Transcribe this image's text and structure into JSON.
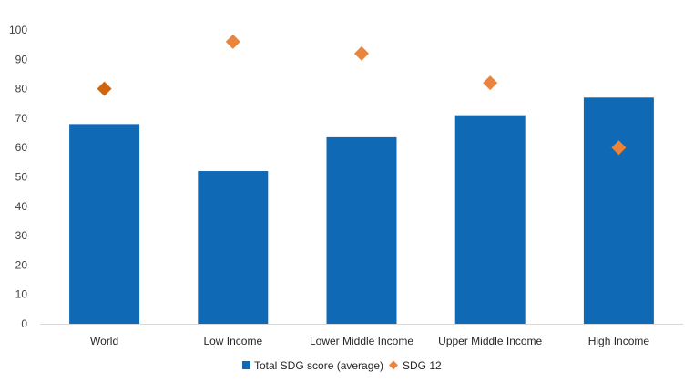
{
  "chart_data": {
    "type": "bar",
    "categories": [
      "World",
      "Low Income",
      "Lower Middle Income",
      "Upper Middle Income",
      "High Income"
    ],
    "series": [
      {
        "name": "Total SDG score (average)",
        "type": "bar",
        "color": "#0F69B4",
        "values": [
          68,
          52,
          63.5,
          71,
          77
        ]
      },
      {
        "name": "SDG 12",
        "type": "scatter",
        "marker": "diamond",
        "color": "#E8843C",
        "values": [
          80,
          96,
          92,
          82,
          60
        ]
      }
    ],
    "ylim": [
      0,
      100
    ],
    "yticks": [
      0,
      10,
      20,
      30,
      40,
      50,
      60,
      70,
      80,
      90,
      100
    ],
    "grid": false,
    "legend_position": "bottom-center",
    "xlabel": "",
    "ylabel": "",
    "title": ""
  }
}
